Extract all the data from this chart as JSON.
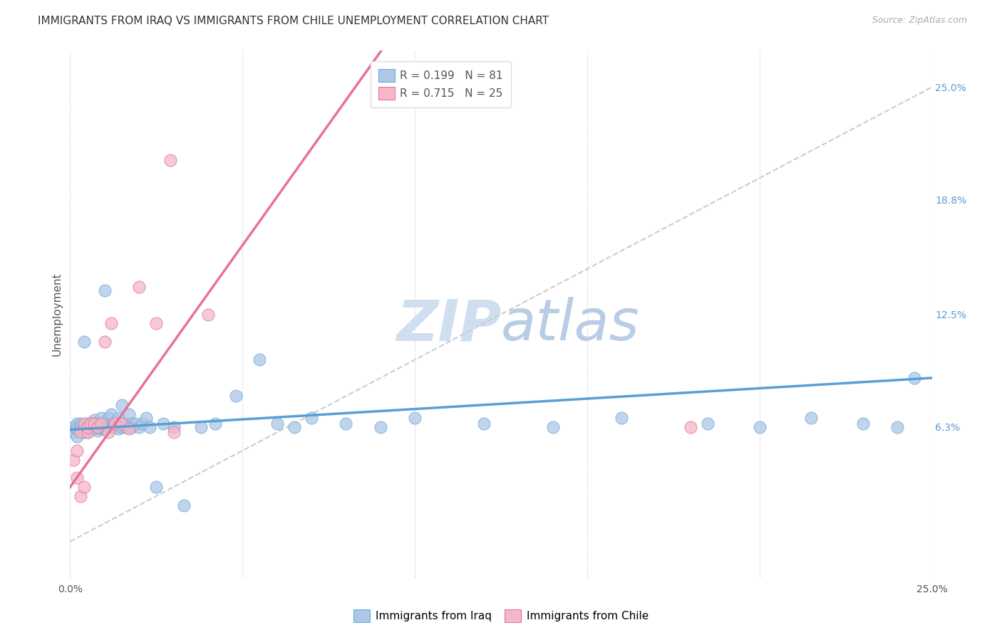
{
  "title": "IMMIGRANTS FROM IRAQ VS IMMIGRANTS FROM CHILE UNEMPLOYMENT CORRELATION CHART",
  "source": "Source: ZipAtlas.com",
  "ylabel": "Unemployment",
  "xlim": [
    0.0,
    0.25
  ],
  "ylim": [
    -0.02,
    0.27
  ],
  "plot_ylim": [
    -0.02,
    0.27
  ],
  "ytick_labels_right": [
    "6.3%",
    "12.5%",
    "18.8%",
    "25.0%"
  ],
  "ytick_vals_right": [
    0.063,
    0.125,
    0.188,
    0.25
  ],
  "legend_iraq_label": "Immigrants from Iraq",
  "legend_chile_label": "Immigrants from Chile",
  "iraq_R": "0.199",
  "iraq_N": "81",
  "chile_R": "0.715",
  "chile_N": "25",
  "iraq_color": "#aec6e8",
  "chile_color": "#f4b8c8",
  "iraq_edge_color": "#6baed6",
  "chile_edge_color": "#e8729a",
  "iraq_line_color": "#5a9fd4",
  "chile_line_color": "#e8729a",
  "diag_line_color": "#cccccc",
  "background_color": "#ffffff",
  "grid_color": "#e0e0ea",
  "watermark_color": "#d0dff0",
  "iraq_scatter_x": [
    0.001,
    0.001,
    0.002,
    0.002,
    0.002,
    0.003,
    0.003,
    0.003,
    0.004,
    0.004,
    0.004,
    0.004,
    0.005,
    0.005,
    0.005,
    0.005,
    0.006,
    0.006,
    0.006,
    0.006,
    0.007,
    0.007,
    0.007,
    0.007,
    0.008,
    0.008,
    0.008,
    0.008,
    0.009,
    0.009,
    0.009,
    0.009,
    0.01,
    0.01,
    0.01,
    0.011,
    0.011,
    0.012,
    0.012,
    0.012,
    0.013,
    0.013,
    0.014,
    0.014,
    0.015,
    0.015,
    0.016,
    0.016,
    0.017,
    0.017,
    0.018,
    0.018,
    0.019,
    0.02,
    0.021,
    0.022,
    0.023,
    0.025,
    0.027,
    0.03,
    0.033,
    0.038,
    0.042,
    0.048,
    0.055,
    0.06,
    0.065,
    0.07,
    0.08,
    0.09,
    0.1,
    0.12,
    0.14,
    0.16,
    0.185,
    0.2,
    0.215,
    0.23,
    0.24,
    0.245,
    0.01
  ],
  "iraq_scatter_y": [
    0.063,
    0.06,
    0.058,
    0.065,
    0.062,
    0.063,
    0.061,
    0.065,
    0.062,
    0.064,
    0.06,
    0.11,
    0.063,
    0.06,
    0.065,
    0.062,
    0.065,
    0.062,
    0.064,
    0.063,
    0.067,
    0.065,
    0.062,
    0.064,
    0.065,
    0.063,
    0.061,
    0.063,
    0.065,
    0.062,
    0.068,
    0.063,
    0.063,
    0.065,
    0.062,
    0.063,
    0.068,
    0.065,
    0.063,
    0.07,
    0.065,
    0.063,
    0.068,
    0.062,
    0.063,
    0.075,
    0.063,
    0.065,
    0.063,
    0.07,
    0.065,
    0.063,
    0.065,
    0.063,
    0.065,
    0.068,
    0.063,
    0.03,
    0.065,
    0.063,
    0.02,
    0.063,
    0.065,
    0.08,
    0.1,
    0.065,
    0.063,
    0.068,
    0.065,
    0.063,
    0.068,
    0.065,
    0.063,
    0.068,
    0.065,
    0.063,
    0.068,
    0.065,
    0.063,
    0.09,
    0.138
  ],
  "chile_scatter_x": [
    0.001,
    0.002,
    0.002,
    0.003,
    0.003,
    0.004,
    0.004,
    0.005,
    0.005,
    0.006,
    0.007,
    0.008,
    0.009,
    0.01,
    0.011,
    0.012,
    0.013,
    0.015,
    0.017,
    0.02,
    0.025,
    0.03,
    0.04,
    0.18,
    0.029
  ],
  "chile_scatter_y": [
    0.045,
    0.035,
    0.05,
    0.025,
    0.06,
    0.065,
    0.03,
    0.06,
    0.063,
    0.065,
    0.065,
    0.063,
    0.065,
    0.11,
    0.06,
    0.12,
    0.065,
    0.065,
    0.062,
    0.14,
    0.12,
    0.06,
    0.125,
    0.063,
    0.21
  ],
  "iraq_line_x0": 0.0,
  "iraq_line_y0": 0.0615,
  "iraq_line_x1": 0.25,
  "iraq_line_y1": 0.09,
  "chile_line_x0": 0.0,
  "chile_line_y0": 0.03,
  "chile_line_x1": 0.05,
  "chile_line_y1": 0.163,
  "title_fontsize": 11,
  "axis_label_fontsize": 11,
  "tick_fontsize": 10,
  "legend_fontsize": 11
}
